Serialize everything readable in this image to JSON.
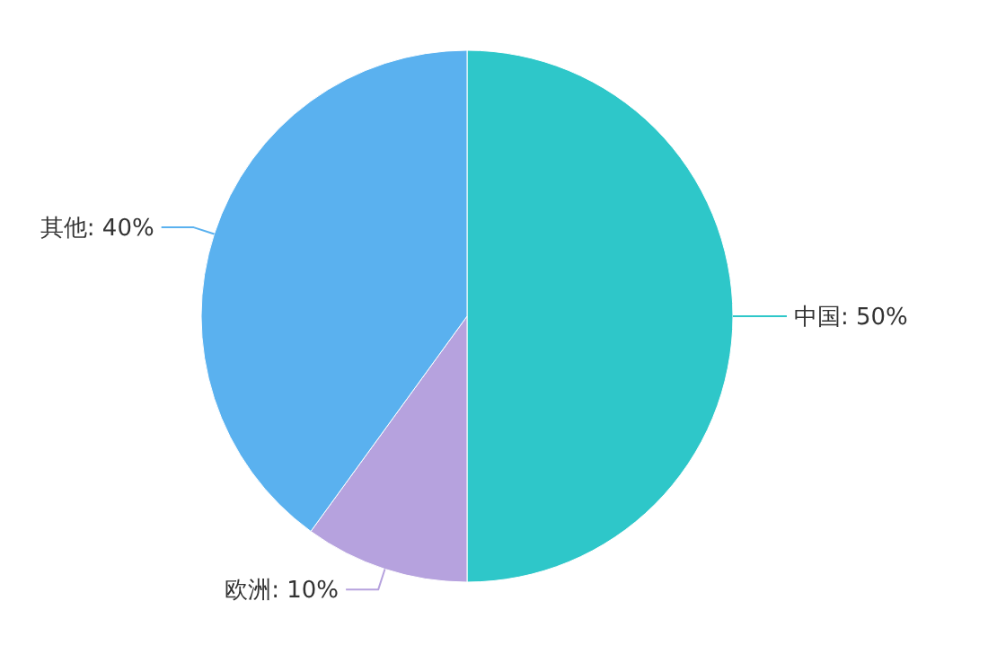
{
  "chart_data": {
    "type": "pie",
    "categories": [
      "中国",
      "欧洲",
      "其他"
    ],
    "values": [
      50,
      10,
      40
    ],
    "value_labels": [
      "50%",
      "10%",
      "40%"
    ],
    "colors": [
      "#2ec7c9",
      "#b6a2de",
      "#5ab1ef"
    ],
    "legend": false
  }
}
